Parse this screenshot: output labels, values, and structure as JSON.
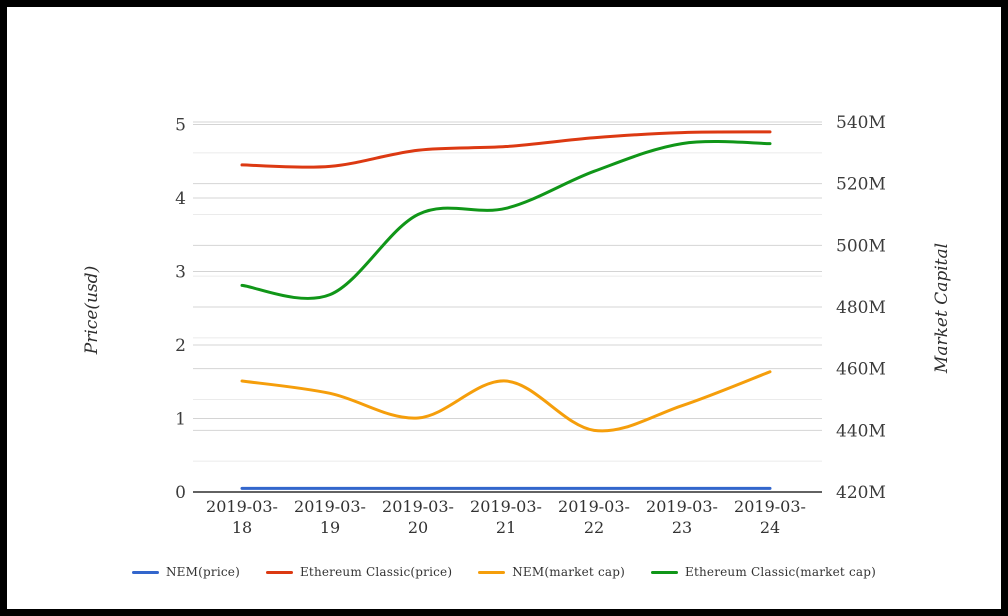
{
  "chart_data": {
    "type": "line",
    "title": "",
    "categories": [
      "2019-03-18",
      "2019-03-19",
      "2019-03-20",
      "2019-03-21",
      "2019-03-22",
      "2019-03-23",
      "2019-03-24"
    ],
    "series": [
      {
        "name": "NEM(price)",
        "axis": "left",
        "color": "#3366CC",
        "values": [
          0.05,
          0.05,
          0.05,
          0.05,
          0.05,
          0.05,
          0.05
        ]
      },
      {
        "name": "Ethereum Classic(price)",
        "axis": "left",
        "color": "#DC3912",
        "values": [
          4.45,
          4.43,
          4.65,
          4.7,
          4.82,
          4.89,
          4.9
        ]
      },
      {
        "name": "NEM(market cap)",
        "axis": "right",
        "color": "#F59E0B",
        "values": [
          456,
          452,
          444,
          456,
          440,
          448,
          459
        ]
      },
      {
        "name": "Ethereum Classic(market cap)",
        "axis": "right",
        "color": "#109618",
        "values": [
          487,
          484,
          510,
          512,
          524,
          533,
          533
        ]
      }
    ],
    "y_left": {
      "label": "Price(usd)",
      "min": 0,
      "max": 5,
      "tick_step": 1,
      "tick_labels": [
        "0",
        "1",
        "2",
        "3",
        "4",
        "5"
      ]
    },
    "y_right": {
      "label": "Market Capital",
      "min": 420,
      "max": 540,
      "tick_step": 20,
      "minor_step": 10,
      "unit": "M",
      "value_unit": "millions_usd",
      "tick_labels": [
        "420M",
        "440M",
        "460M",
        "480M",
        "500M",
        "520M",
        "540M"
      ]
    },
    "x_axis": {
      "label_wrap": true
    },
    "legend_position": "bottom",
    "grid": true,
    "smooth": true
  },
  "style_colors": {
    "axis_line": "#2f2f2f",
    "grid_major": "#d4d4d4",
    "grid_minor": "#ebebeb",
    "tick_text": "#3c3c3c",
    "frame": "#000000"
  }
}
